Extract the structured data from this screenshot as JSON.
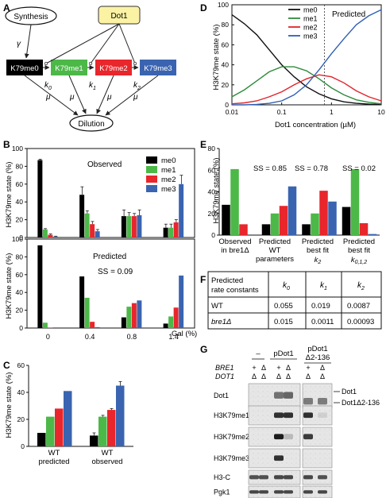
{
  "colors": {
    "me0": "#000000",
    "me1": "#4cb848",
    "me2": "#e8262b",
    "me3": "#3a64b0",
    "dot1_fill": "#fbf2a4",
    "curve_me0": "#111111",
    "curve_me1": "#2e8b3c",
    "curve_me2": "#e0242b",
    "curve_me3": "#2f5fb5"
  },
  "panels": {
    "A": {
      "letter": "A",
      "synthesis": "Synthesis",
      "dot1": "Dot1",
      "nodes": [
        "K79me0",
        "K79me1",
        "K79me2",
        "K79me3"
      ],
      "rates": [
        "k",
        "k",
        "k"
      ],
      "rate_subs": [
        "0",
        "1",
        "2"
      ],
      "gamma": "γ",
      "mu": "μ",
      "dilution": "Dilution"
    },
    "B": {
      "letter": "B",
      "ylabel": "H3K79me state (%)",
      "top_title": "Observed",
      "bottom_title": "Predicted",
      "ss_text": "SS = 0.09",
      "xlabel": "Gal (%)",
      "legend": [
        "me0",
        "me1",
        "me2",
        "me3"
      ]
    },
    "C": {
      "letter": "C",
      "ylabel": "H3K79me state (%)",
      "groups": [
        [
          "WT",
          "predicted"
        ],
        [
          "WT",
          "observed"
        ]
      ]
    },
    "D": {
      "letter": "D",
      "ylabel": "H3K79me state (%)",
      "xlabel": "Dot1 concentration (µM)",
      "predicted": "Predicted",
      "legend": [
        "me0",
        "me1",
        "me2",
        "me3"
      ]
    },
    "E": {
      "letter": "E",
      "ylabel": "H3K79me state (%)",
      "ss": [
        "SS = 0.85",
        "SS = 0.78",
        "SS = 0.02"
      ],
      "groups": [
        [
          "Observed",
          "in bre1Δ"
        ],
        [
          "Predicted",
          "WT",
          "parameters"
        ],
        [
          "Predicted",
          "best fit",
          "k"
        ],
        [
          "Predicted",
          "best fit",
          "k"
        ]
      ],
      "group_subs": [
        "",
        "",
        "2",
        "0,1,2"
      ]
    },
    "F": {
      "letter": "F",
      "header": [
        "Predicted",
        "rate constants",
        "k",
        "k",
        "k"
      ],
      "header_subs": [
        "0",
        "1",
        "2"
      ],
      "rows": [
        [
          "WT",
          "0.055",
          "0.019",
          "0.0087"
        ],
        [
          "bre1Δ",
          "0.015",
          "0.0011",
          "0.00093"
        ]
      ]
    },
    "G": {
      "letter": "G",
      "col_heads": [
        "–",
        "pDot1",
        "pDot1",
        "Δ2-136"
      ],
      "genotype_labels": [
        "BRE1",
        "DOT1"
      ],
      "bre1_marks": [
        "+",
        "Δ",
        "+",
        "Δ",
        "+",
        "Δ"
      ],
      "dot1_marks": [
        "Δ",
        "Δ",
        "Δ",
        "Δ",
        "Δ",
        "Δ"
      ],
      "rows": [
        "Dot1",
        "H3K79me1",
        "H3K79me2",
        "H3K79me3",
        "H3-C",
        "Pgk1"
      ],
      "right_labels": [
        "Dot1",
        "Dot1Δ2-136"
      ]
    }
  },
  "chart_data": [
    {
      "panel": "B-observed",
      "type": "bar",
      "title": "Observed",
      "ylabel": "H3K79me state (%)",
      "xlabel": "Gal (%)",
      "categories": [
        "0",
        "0.4",
        "0.8",
        "1.4"
      ],
      "ylim": [
        0,
        100
      ],
      "yticks": [
        0,
        20,
        40,
        60,
        80,
        100
      ],
      "series": [
        {
          "name": "me0",
          "values": [
            87,
            48,
            24,
            11
          ],
          "errors": [
            1,
            9,
            7,
            4
          ]
        },
        {
          "name": "me1",
          "values": [
            9,
            27,
            24,
            11
          ],
          "errors": [
            1,
            3,
            4,
            4
          ]
        },
        {
          "name": "me2",
          "values": [
            3,
            15,
            24,
            17
          ],
          "errors": [
            1,
            3,
            3,
            3
          ]
        },
        {
          "name": "me3",
          "values": [
            1,
            7,
            25,
            60
          ],
          "errors": [
            0.5,
            2,
            6,
            10
          ]
        }
      ]
    },
    {
      "panel": "B-predicted",
      "type": "bar",
      "title": "Predicted",
      "annotation": "SS = 0.09",
      "categories": [
        "0",
        "0.4",
        "0.8",
        "1.4"
      ],
      "ylim": [
        0,
        100
      ],
      "yticks": [
        0,
        20,
        40,
        60,
        80,
        100
      ],
      "series": [
        {
          "name": "me0",
          "values": [
            93,
            58,
            12,
            5
          ]
        },
        {
          "name": "me1",
          "values": [
            6,
            34,
            24,
            13
          ]
        },
        {
          "name": "me2",
          "values": [
            0.5,
            7,
            28,
            23
          ]
        },
        {
          "name": "me3",
          "values": [
            0,
            1,
            31,
            59
          ]
        }
      ]
    },
    {
      "panel": "C",
      "type": "bar",
      "ylabel": "H3K79me state (%)",
      "categories": [
        "WT predicted",
        "WT observed"
      ],
      "ylim": [
        0,
        60
      ],
      "yticks": [
        0,
        20,
        40,
        60
      ],
      "series": [
        {
          "name": "me0",
          "values": [
            10,
            8
          ],
          "errors": [
            0,
            2
          ]
        },
        {
          "name": "me1",
          "values": [
            22,
            22
          ],
          "errors": [
            0,
            1
          ]
        },
        {
          "name": "me2",
          "values": [
            28,
            27
          ],
          "errors": [
            0,
            1
          ]
        },
        {
          "name": "me3",
          "values": [
            41,
            45
          ],
          "errors": [
            0,
            3
          ]
        }
      ]
    },
    {
      "panel": "D",
      "type": "line",
      "xscale": "log",
      "xlabel": "Dot1 concentration (µM)",
      "ylabel": "H3K79me state (%)",
      "xlim": [
        0.01,
        10
      ],
      "ylim": [
        0,
        100
      ],
      "xticks": [
        0.01,
        0.1,
        1,
        10
      ],
      "yticks": [
        0,
        20,
        40,
        60,
        80,
        100
      ],
      "vline": 0.72,
      "annotation": "Predicted",
      "x": [
        0.01,
        0.0178,
        0.0316,
        0.0562,
        0.1,
        0.178,
        0.316,
        0.562,
        1,
        1.78,
        3.16,
        5.62,
        10
      ],
      "series": [
        {
          "name": "me0",
          "values": [
            90,
            81,
            70,
            55,
            40,
            28,
            18,
            11,
            6,
            3,
            1.5,
            0.7,
            0.3
          ]
        },
        {
          "name": "me1",
          "values": [
            8,
            15,
            24,
            33,
            38,
            38,
            34,
            26,
            17,
            10,
            5,
            2.5,
            1
          ]
        },
        {
          "name": "me2",
          "values": [
            1,
            2,
            4,
            8,
            13,
            20,
            26,
            30,
            28,
            22,
            14,
            8,
            4
          ]
        },
        {
          "name": "me3",
          "values": [
            0,
            0,
            0.5,
            1.5,
            4,
            10,
            20,
            35,
            51,
            66,
            80,
            89,
            95
          ]
        }
      ]
    },
    {
      "panel": "E",
      "type": "bar",
      "ylabel": "H3K79me state (%)",
      "categories": [
        "Observed in bre1Δ",
        "Predicted WT parameters",
        "Predicted best fit k2",
        "Predicted best fit k0,k1,k2"
      ],
      "annotations": [
        "SS = 0.85",
        "SS = 0.78",
        "SS = 0.02"
      ],
      "ylim": [
        0,
        80
      ],
      "yticks": [
        0,
        20,
        40,
        60,
        80
      ],
      "series": [
        {
          "name": "me0",
          "values": [
            28,
            10,
            10,
            26
          ]
        },
        {
          "name": "me1",
          "values": [
            61,
            20,
            20,
            61
          ]
        },
        {
          "name": "me2",
          "values": [
            10,
            27,
            41,
            11
          ]
        },
        {
          "name": "me3",
          "values": [
            0,
            45,
            31,
            1
          ]
        }
      ]
    }
  ]
}
